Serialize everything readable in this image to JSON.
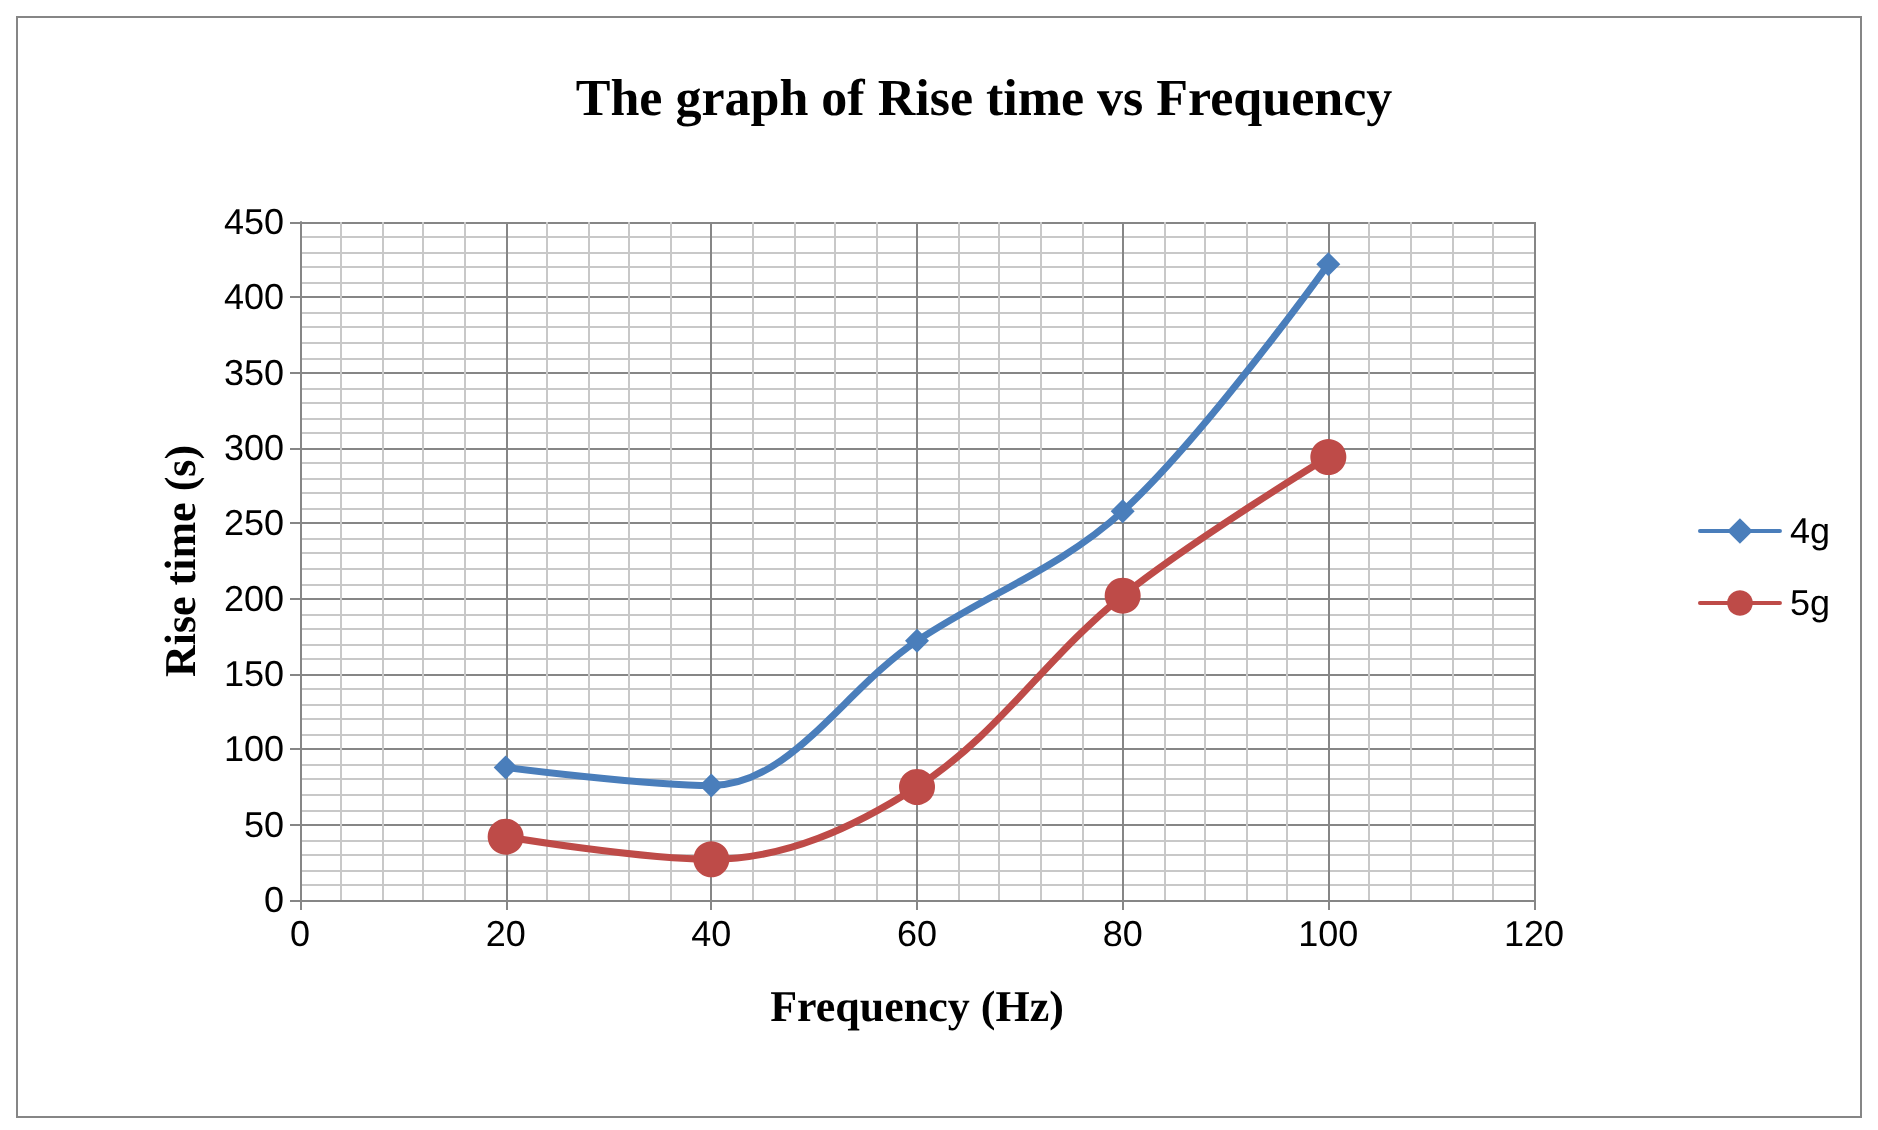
{
  "chart_data": {
    "type": "line",
    "title": "The graph of Rise time vs Frequency",
    "xlabel": "Frequency (Hz)",
    "ylabel": "Rise time (s)",
    "x": [
      20,
      40,
      60,
      80,
      100
    ],
    "series": [
      {
        "name": "4g",
        "color": "#4a7ebb",
        "marker": "diamond",
        "values": [
          88,
          76,
          172,
          258,
          422
        ]
      },
      {
        "name": "5g",
        "color": "#be4b48",
        "marker": "circle",
        "values": [
          42,
          27,
          75,
          202,
          294
        ]
      }
    ],
    "xlim": [
      0,
      120
    ],
    "xticks": [
      0,
      20,
      40,
      60,
      80,
      100,
      120
    ],
    "ylim": [
      0,
      450
    ],
    "yticks": [
      0,
      50,
      100,
      150,
      200,
      250,
      300,
      350,
      400,
      450
    ],
    "grid": true,
    "legend": "right",
    "line_style": "solid"
  }
}
